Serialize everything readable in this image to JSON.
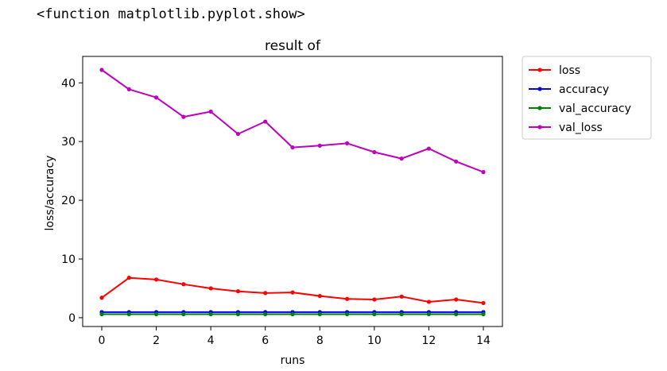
{
  "output_text": "<function matplotlib.pyplot.show>",
  "chart_data": {
    "type": "line",
    "title": "result of",
    "xlabel": "runs",
    "ylabel": "loss/accuracy",
    "xlim": [
      -0.7,
      14.7
    ],
    "ylim": [
      -1.5,
      44.5
    ],
    "xticks": [
      0,
      2,
      4,
      6,
      8,
      10,
      12,
      14
    ],
    "yticks": [
      0,
      10,
      20,
      30,
      40
    ],
    "grid": false,
    "legend_placement": "outside-top-right",
    "x": [
      0,
      1,
      2,
      3,
      4,
      5,
      6,
      7,
      8,
      9,
      10,
      11,
      12,
      13,
      14
    ],
    "series": [
      {
        "name": "loss",
        "color": "#ff0000",
        "values": [
          3.4,
          6.8,
          6.5,
          5.7,
          5.0,
          4.5,
          4.2,
          4.3,
          3.7,
          3.2,
          3.1,
          3.6,
          2.7,
          3.1,
          2.5
        ]
      },
      {
        "name": "accuracy",
        "color": "#0000ff",
        "values": [
          0.95,
          0.95,
          0.95,
          0.95,
          0.95,
          0.95,
          0.95,
          0.95,
          0.95,
          0.95,
          0.95,
          0.95,
          0.95,
          0.95,
          0.95
        ]
      },
      {
        "name": "val_accuracy",
        "color": "#008000",
        "values": [
          0.6,
          0.6,
          0.6,
          0.6,
          0.6,
          0.6,
          0.6,
          0.6,
          0.6,
          0.6,
          0.6,
          0.6,
          0.6,
          0.6,
          0.6
        ]
      },
      {
        "name": "val_loss",
        "color": "#bf00bf",
        "values": [
          42.2,
          38.9,
          37.5,
          34.2,
          35.1,
          31.3,
          33.4,
          29.0,
          29.3,
          29.7,
          28.2,
          27.1,
          28.8,
          26.6,
          24.8
        ]
      }
    ]
  }
}
